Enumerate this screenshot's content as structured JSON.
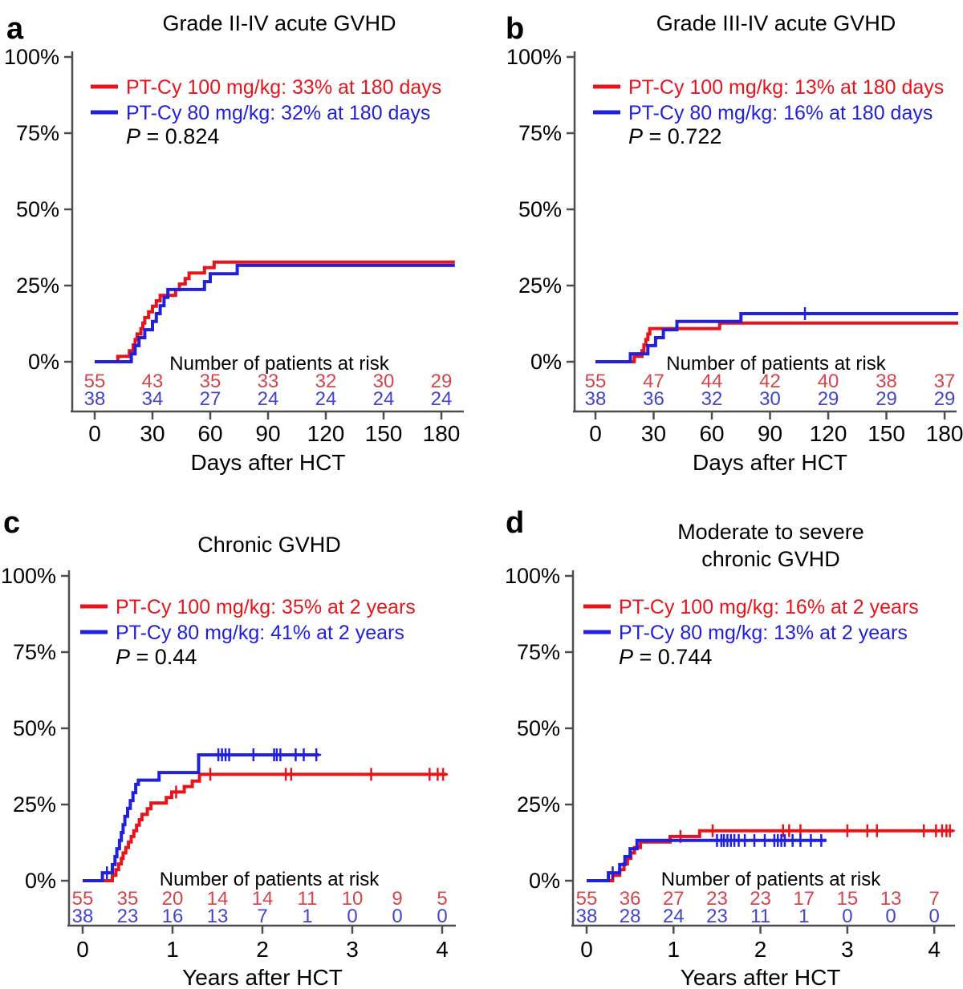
{
  "figure": {
    "background": "#ffffff",
    "colors": {
      "series_red": "#e8141b",
      "series_blue": "#2121dd",
      "risk_red": "#d5454e",
      "risk_blue": "#4343cf",
      "text": "#000000",
      "axis": "#4d4d4d"
    }
  },
  "chart_data": [
    {
      "id": "a",
      "type": "step-cumulative-incidence",
      "panel_label": "a",
      "title_lines": [
        "Grade II-IV acute GVHD"
      ],
      "x_label": "Days after HCT",
      "x_unit": "days",
      "x_ticks": [
        0,
        30,
        60,
        90,
        120,
        150,
        180
      ],
      "xlim": [
        0,
        187
      ],
      "y_tick_labels": [
        "0%",
        "25%",
        "50%",
        "75%",
        "100%"
      ],
      "ylim": [
        0,
        100
      ],
      "grid": false,
      "legend_position": "upper-left-inside",
      "legend": [
        {
          "series": "red",
          "label": "PT-Cy 100 mg/kg: 33% at 180 days"
        },
        {
          "series": "blue",
          "label": "PT-Cy 80 mg/kg: 32% at 180 days"
        }
      ],
      "p_italic": "P",
      "p_rest": " = 0.824",
      "risk_header": "Number of patients at risk",
      "risk_times": [
        0,
        30,
        60,
        90,
        120,
        150,
        180
      ],
      "risk": {
        "red": [
          "55",
          "43",
          "35",
          "33",
          "32",
          "30",
          "29"
        ],
        "blue": [
          "38",
          "34",
          "27",
          "24",
          "24",
          "24",
          "24"
        ]
      },
      "series": [
        {
          "name": "PT-Cy 100 mg/kg",
          "series": "red",
          "steps": [
            [
              0,
              0
            ],
            [
              12,
              1.8
            ],
            [
              18,
              3.6
            ],
            [
              20,
              5.5
            ],
            [
              21,
              7.3
            ],
            [
              22,
              9.1
            ],
            [
              24,
              10.9
            ],
            [
              25,
              12.7
            ],
            [
              26,
              14.5
            ],
            [
              28,
              16.4
            ],
            [
              30,
              18.2
            ],
            [
              32,
              20
            ],
            [
              34,
              21.8
            ],
            [
              42,
              23.6
            ],
            [
              44,
              25.5
            ],
            [
              47,
              27.3
            ],
            [
              49,
              29.1
            ],
            [
              57,
              30.9
            ],
            [
              62,
              32.7
            ]
          ],
          "end_x": 187,
          "censors": []
        },
        {
          "name": "PT-Cy 80 mg/kg",
          "series": "blue",
          "steps": [
            [
              0,
              0
            ],
            [
              19,
              2.6
            ],
            [
              21,
              5.3
            ],
            [
              23,
              7.9
            ],
            [
              26,
              10.5
            ],
            [
              30,
              13.2
            ],
            [
              32,
              15.8
            ],
            [
              34,
              18.4
            ],
            [
              36,
              21.1
            ],
            [
              38,
              23.7
            ],
            [
              57,
              26.3
            ],
            [
              60,
              28.9
            ],
            [
              74,
              31.6
            ]
          ],
          "end_x": 187,
          "censors": []
        }
      ]
    },
    {
      "id": "b",
      "type": "step-cumulative-incidence",
      "panel_label": "b",
      "title_lines": [
        "Grade III-IV acute GVHD"
      ],
      "x_label": "Days after HCT",
      "x_unit": "days",
      "x_ticks": [
        0,
        30,
        60,
        90,
        120,
        150,
        180
      ],
      "xlim": [
        0,
        187
      ],
      "y_tick_labels": [
        "0%",
        "25%",
        "50%",
        "75%",
        "100%"
      ],
      "ylim": [
        0,
        100
      ],
      "grid": false,
      "legend_position": "upper-left-inside",
      "legend": [
        {
          "series": "red",
          "label": "PT-Cy 100 mg/kg: 13% at 180 days"
        },
        {
          "series": "blue",
          "label": "PT-Cy 80 mg/kg: 16% at 180 days"
        }
      ],
      "p_italic": "P",
      "p_rest": " = 0.722",
      "risk_header": "Number of patients at risk",
      "risk_times": [
        0,
        30,
        60,
        90,
        120,
        150,
        180
      ],
      "risk": {
        "red": [
          "55",
          "47",
          "44",
          "42",
          "40",
          "38",
          "37"
        ],
        "blue": [
          "38",
          "36",
          "32",
          "30",
          "29",
          "29",
          "29"
        ]
      },
      "series": [
        {
          "name": "PT-Cy 100 mg/kg",
          "series": "red",
          "steps": [
            [
              0,
              0
            ],
            [
              20,
              1.8
            ],
            [
              24,
              3.6
            ],
            [
              25,
              5.5
            ],
            [
              26,
              7.3
            ],
            [
              27,
              9.1
            ],
            [
              28,
              10.9
            ],
            [
              64,
              12.7
            ]
          ],
          "end_x": 187,
          "censors": []
        },
        {
          "name": "PT-Cy 80 mg/kg",
          "series": "blue",
          "steps": [
            [
              0,
              0
            ],
            [
              18,
              2.6
            ],
            [
              27,
              5.3
            ],
            [
              31,
              7.9
            ],
            [
              35,
              10.5
            ],
            [
              42,
              13.2
            ],
            [
              75,
              15.8
            ]
          ],
          "end_x": 187,
          "censors": [
            [
              108,
              15.8
            ]
          ]
        }
      ]
    },
    {
      "id": "c",
      "type": "step-cumulative-incidence",
      "panel_label": "c",
      "title_lines": [
        "Chronic GVHD"
      ],
      "x_label": "Years after HCT",
      "x_unit": "years",
      "x_ticks": [
        0,
        1,
        2,
        3,
        4
      ],
      "xlim": [
        0,
        4.1
      ],
      "y_tick_labels": [
        "0%",
        "25%",
        "50%",
        "75%",
        "100%"
      ],
      "ylim": [
        0,
        100
      ],
      "grid": false,
      "legend_position": "upper-left-inside",
      "legend": [
        {
          "series": "red",
          "label": "PT-Cy 100 mg/kg: 35% at 2 years"
        },
        {
          "series": "blue",
          "label": "PT-Cy 80 mg/kg: 41% at 2 years"
        }
      ],
      "p_italic": "P",
      "p_rest": " = 0.44",
      "risk_header": "Number of patients at risk",
      "risk_times": [
        0,
        0.5,
        1,
        1.5,
        2,
        2.5,
        3,
        3.5,
        4
      ],
      "risk": {
        "red": [
          "55",
          "35",
          "20",
          "14",
          "14",
          "11",
          "10",
          "9",
          "5"
        ],
        "blue": [
          "38",
          "23",
          "16",
          "13",
          "7",
          "1",
          "0",
          "0",
          "0"
        ]
      },
      "series": [
        {
          "name": "PT-Cy 100 mg/kg",
          "series": "red",
          "steps": [
            [
              0,
              0
            ],
            [
              0.33,
              1.8
            ],
            [
              0.37,
              3.6
            ],
            [
              0.4,
              5.5
            ],
            [
              0.43,
              7.3
            ],
            [
              0.45,
              9.1
            ],
            [
              0.48,
              10.9
            ],
            [
              0.51,
              12.7
            ],
            [
              0.54,
              14.5
            ],
            [
              0.57,
              16.4
            ],
            [
              0.6,
              18.2
            ],
            [
              0.63,
              20
            ],
            [
              0.66,
              21.8
            ],
            [
              0.72,
              23.6
            ],
            [
              0.76,
              25.5
            ],
            [
              0.93,
              27.3
            ],
            [
              0.99,
              29.1
            ],
            [
              1.13,
              30.9
            ],
            [
              1.22,
              32.7
            ],
            [
              1.3,
              34.9
            ]
          ],
          "end_x": 4.05,
          "censors": [
            [
              1.04,
              29.1
            ],
            [
              1.42,
              34.9
            ],
            [
              2.26,
              34.9
            ],
            [
              2.32,
              34.9
            ],
            [
              3.21,
              34.9
            ],
            [
              3.86,
              34.9
            ],
            [
              3.95,
              34.9
            ],
            [
              4.01,
              34.9
            ]
          ]
        },
        {
          "name": "PT-Cy 80 mg/kg",
          "series": "blue",
          "steps": [
            [
              0,
              0
            ],
            [
              0.22,
              2.6
            ],
            [
              0.33,
              5.3
            ],
            [
              0.36,
              7.9
            ],
            [
              0.38,
              10.5
            ],
            [
              0.41,
              13.2
            ],
            [
              0.43,
              15.8
            ],
            [
              0.45,
              18.4
            ],
            [
              0.47,
              21.1
            ],
            [
              0.5,
              23.7
            ],
            [
              0.53,
              26.3
            ],
            [
              0.56,
              28.9
            ],
            [
              0.59,
              31.6
            ],
            [
              0.62,
              33
            ],
            [
              0.85,
              35.5
            ],
            [
              1.29,
              41.3
            ]
          ],
          "end_x": 2.63,
          "censors": [
            [
              0.27,
              2.6
            ],
            [
              1.51,
              41.3
            ],
            [
              1.55,
              41.3
            ],
            [
              1.59,
              41.3
            ],
            [
              1.63,
              41.3
            ],
            [
              1.9,
              41.3
            ],
            [
              2.13,
              41.3
            ],
            [
              2.16,
              41.3
            ],
            [
              2.2,
              41.3
            ],
            [
              2.37,
              41.3
            ],
            [
              2.46,
              41.3
            ],
            [
              2.6,
              41.3
            ]
          ]
        }
      ]
    },
    {
      "id": "d",
      "type": "step-cumulative-incidence",
      "panel_label": "d",
      "title_lines": [
        "Moderate to severe",
        "chronic GVHD"
      ],
      "x_label": "Years after HCT",
      "x_unit": "years",
      "x_ticks": [
        0,
        1,
        2,
        3,
        4
      ],
      "xlim": [
        0,
        4.25
      ],
      "y_tick_labels": [
        "0%",
        "25%",
        "50%",
        "75%",
        "100%"
      ],
      "ylim": [
        0,
        100
      ],
      "grid": false,
      "legend_position": "upper-left-inside",
      "legend": [
        {
          "series": "red",
          "label": "PT-Cy 100 mg/kg: 16% at 2 years"
        },
        {
          "series": "blue",
          "label": "PT-Cy 80 mg/kg: 13% at 2 years"
        }
      ],
      "p_italic": "P",
      "p_rest": " = 0.744",
      "risk_header": "Number of patients at risk",
      "risk_times": [
        0,
        0.5,
        1,
        1.5,
        2,
        2.5,
        3,
        3.5,
        4
      ],
      "risk": {
        "red": [
          "55",
          "36",
          "27",
          "23",
          "23",
          "17",
          "15",
          "13",
          "7"
        ],
        "blue": [
          "38",
          "28",
          "24",
          "23",
          "11",
          "1",
          "0",
          "0",
          "0"
        ]
      },
      "series": [
        {
          "name": "PT-Cy 100 mg/kg",
          "series": "red",
          "steps": [
            [
              0,
              0
            ],
            [
              0.3,
              1.8
            ],
            [
              0.38,
              3.6
            ],
            [
              0.43,
              5.5
            ],
            [
              0.47,
              7.3
            ],
            [
              0.51,
              9.1
            ],
            [
              0.55,
              10.9
            ],
            [
              0.62,
              12.7
            ],
            [
              0.96,
              14.5
            ],
            [
              1.3,
              16.4
            ]
          ],
          "end_x": 4.22,
          "censors": [
            [
              1.08,
              14.5
            ],
            [
              1.45,
              16.4
            ],
            [
              2.26,
              16.4
            ],
            [
              2.33,
              16.4
            ],
            [
              2.46,
              16.4
            ],
            [
              3,
              16.4
            ],
            [
              3.23,
              16.4
            ],
            [
              3.34,
              16.4
            ],
            [
              3.88,
              16.4
            ],
            [
              4.02,
              16.4
            ],
            [
              4.09,
              16.4
            ],
            [
              4.14,
              16.4
            ],
            [
              4.18,
              16.4
            ]
          ]
        },
        {
          "name": "PT-Cy 80 mg/kg",
          "series": "blue",
          "steps": [
            [
              0,
              0
            ],
            [
              0.25,
              2.6
            ],
            [
              0.38,
              5.3
            ],
            [
              0.44,
              7.9
            ],
            [
              0.5,
              10.5
            ],
            [
              0.58,
              13.2
            ]
          ],
          "end_x": 2.76,
          "censors": [
            [
              0.3,
              2.6
            ],
            [
              1.5,
              13.2
            ],
            [
              1.55,
              13.2
            ],
            [
              1.58,
              13.2
            ],
            [
              1.62,
              13.2
            ],
            [
              1.66,
              13.2
            ],
            [
              1.7,
              13.2
            ],
            [
              1.75,
              13.2
            ],
            [
              1.82,
              13.2
            ],
            [
              1.93,
              13.2
            ],
            [
              2.05,
              13.2
            ],
            [
              2.16,
              13.2
            ],
            [
              2.2,
              13.2
            ],
            [
              2.24,
              13.2
            ],
            [
              2.28,
              13.2
            ],
            [
              2.37,
              13.2
            ],
            [
              2.46,
              13.2
            ],
            [
              2.58,
              13.2
            ],
            [
              2.7,
              13.2
            ]
          ]
        }
      ]
    }
  ]
}
